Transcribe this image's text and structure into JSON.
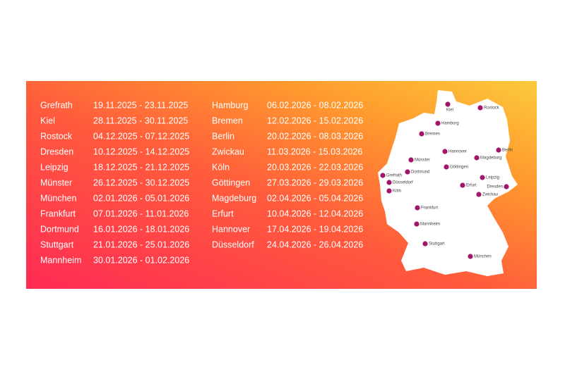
{
  "schedule": {
    "left": [
      [
        "Grefrath",
        "19.11.2025 - 23.11.2025"
      ],
      [
        "Kiel",
        "28.11.2025 - 30.11.2025"
      ],
      [
        "Rostock",
        "04.12.2025 - 07.12.2025"
      ],
      [
        "Dresden",
        "10.12.2025 - 14.12.2025"
      ],
      [
        "Leipzig",
        "18.12.2025 - 21.12.2025"
      ],
      [
        "Münster",
        "26.12.2025 - 30.12.2025"
      ],
      [
        "München",
        "02.01.2026 - 05.01.2026"
      ],
      [
        "Frankfurt",
        "07.01.2026 - 11.01.2026"
      ],
      [
        "Dortmund",
        "16.01.2026 - 18.01.2026"
      ],
      [
        "Stuttgart",
        "21.01.2026 - 25.01.2026"
      ],
      [
        "Mannheim",
        "30.01.2026 - 01.02.2026"
      ]
    ],
    "right": [
      [
        "Hamburg",
        "06.02.2026 - 08.02.2026"
      ],
      [
        "Bremen",
        "12.02.2026 - 15.02.2026"
      ],
      [
        "Berlin",
        "20.02.2026 - 08.03.2026"
      ],
      [
        "Zwickau",
        "11.03.2026 - 15.03.2026"
      ],
      [
        "Köln",
        "20.03.2026 - 22.03.2026"
      ],
      [
        "Göttingen",
        "27.03.2026 - 29.03.2026"
      ],
      [
        "Magdeburg",
        "02.04.2026 - 05.04.2026"
      ],
      [
        "Erfurt",
        "10.04.2026 - 12.04.2026"
      ],
      [
        "Hannover",
        "17.04.2026 - 19.04.2026"
      ],
      [
        "Düsseldorf",
        "24.04.2026 - 26.04.2026"
      ]
    ]
  },
  "map": {
    "cities": [
      "Kiel",
      "Rostock",
      "Hamburg",
      "Bremen",
      "Berlin",
      "Hannover",
      "Magdeburg",
      "Münster",
      "Dortmund",
      "Göttingen",
      "Grefrath",
      "Düsseldorf",
      "Köln",
      "Leipzig",
      "Dresden",
      "Erfurt",
      "Zwickau",
      "Frankfurt",
      "Mannheim",
      "Stuttgart",
      "München"
    ]
  }
}
